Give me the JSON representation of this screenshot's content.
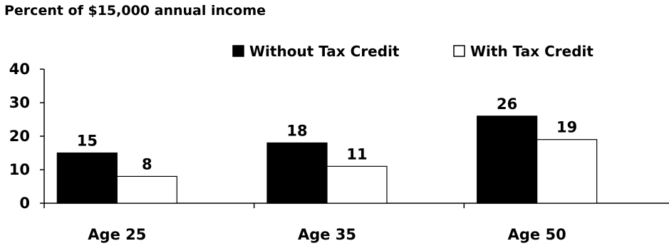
{
  "chart_data": {
    "type": "bar",
    "title": "Percent of $15,000 annual income",
    "categories": [
      "Age 25",
      "Age 35",
      "Age 50"
    ],
    "series": [
      {
        "name": "Without Tax Credit",
        "values": [
          15,
          18,
          26
        ],
        "color": "#000000"
      },
      {
        "name": "With Tax Credit",
        "values": [
          8,
          11,
          19
        ],
        "color": "#ffffff"
      }
    ],
    "ylim": [
      0,
      40
    ],
    "yticks": [
      "0",
      "10",
      "20",
      "30",
      "40"
    ],
    "data_labels": [
      [
        "15",
        "18",
        "26"
      ],
      [
        "8",
        "11",
        "19"
      ]
    ],
    "legend_position": "top-right",
    "grid": false
  }
}
